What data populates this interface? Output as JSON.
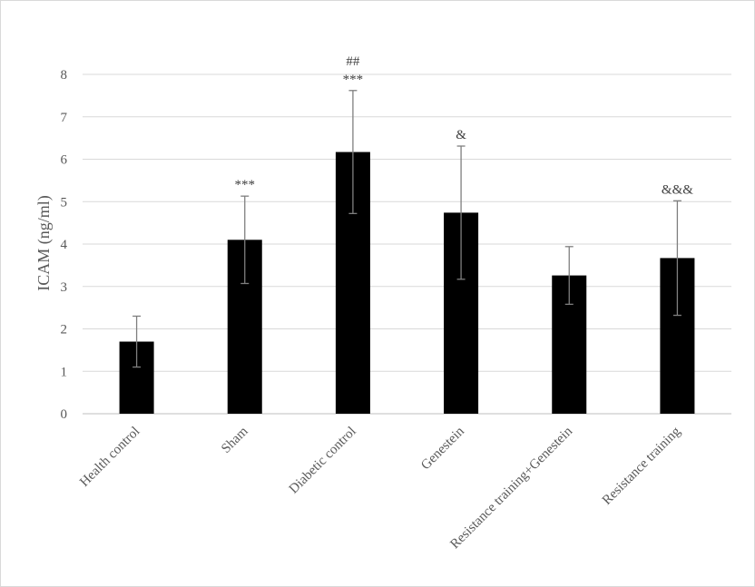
{
  "chart_data": {
    "type": "bar",
    "title": "",
    "xlabel": "",
    "ylabel": "ICAM  (ng/ml)",
    "ylim": [
      0,
      8
    ],
    "yticks": [
      0,
      1,
      2,
      3,
      4,
      5,
      6,
      7,
      8
    ],
    "grid": true,
    "legend": "none",
    "bar_color": "#000000",
    "error_color": "#7f7f7f",
    "categories": [
      "Health control",
      "Sham",
      "Diabetic control",
      "Genestein",
      "Resistance training+Genestein",
      "Resistance training"
    ],
    "values": [
      1.7,
      4.1,
      6.17,
      4.74,
      3.26,
      3.67
    ],
    "errors": [
      0.6,
      1.03,
      1.45,
      1.57,
      0.68,
      1.35
    ],
    "annotations": [
      [
        "",
        ""
      ],
      [
        "***"
      ],
      [
        "##",
        "***"
      ],
      [
        "&"
      ],
      [
        ""
      ],
      [
        "&&&"
      ]
    ]
  }
}
